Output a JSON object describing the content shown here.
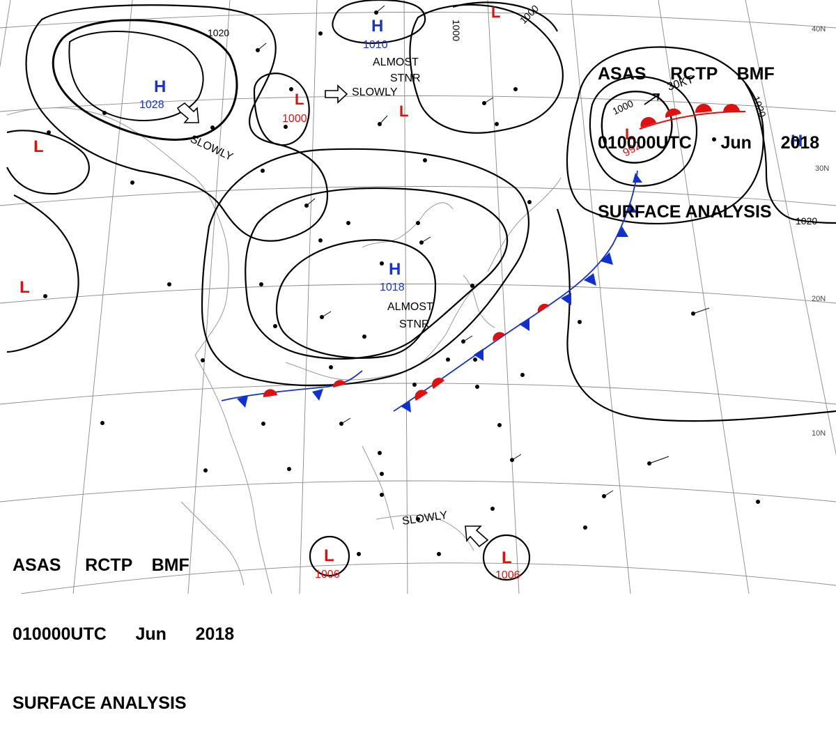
{
  "header": {
    "line1": "ASAS     RCTP    BMF",
    "line2": "010000UTC      Jun      2018",
    "line3": "SURFACE ANALYSIS"
  },
  "lat_labels": [
    "40N",
    "30N",
    "20N",
    "10N"
  ],
  "colors": {
    "high": "#1a33cc",
    "low": "#e01010",
    "front_blue": "#1030d0",
    "front_red": "#e01010",
    "isobar": "#000000",
    "grid": "#777777",
    "coast": "#9a9a9a"
  },
  "pressure_centers": [
    {
      "id": "h-north",
      "type": "H",
      "value": "1010"
    },
    {
      "id": "h-west",
      "type": "H",
      "value": "1028"
    },
    {
      "id": "h-central",
      "type": "H",
      "value": "1018"
    },
    {
      "id": "h-east",
      "type": "H",
      "value": ""
    },
    {
      "id": "l-mid",
      "type": "L",
      "value": "1000"
    },
    {
      "id": "l-mid2",
      "type": "L",
      "value": ""
    },
    {
      "id": "l-typhoon",
      "type": "L",
      "value": "992"
    },
    {
      "id": "l-sw",
      "type": "L",
      "value": "1006"
    },
    {
      "id": "l-se",
      "type": "L",
      "value": "1006"
    },
    {
      "id": "l-west",
      "type": "L",
      "value": ""
    },
    {
      "id": "l-farwest",
      "type": "L",
      "value": ""
    },
    {
      "id": "l-top",
      "type": "L",
      "value": ""
    }
  ],
  "isobar_labels": [
    "1020",
    "1000",
    "1000",
    "1000",
    "1020",
    "1020"
  ],
  "annotations": {
    "almost_stnr_top": [
      "ALMOST",
      "STNR"
    ],
    "slowly_top": "SLOWLY",
    "slowly_left": "SLOWLY",
    "almost_stnr_center": [
      "ALMOST",
      "STNR"
    ],
    "slowly_bottom": "SLOWLY",
    "speed": "30KT"
  }
}
